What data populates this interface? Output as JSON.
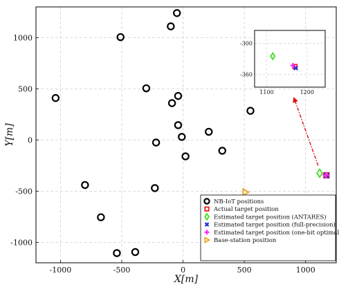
{
  "chart_data": {
    "type": "scatter",
    "xlabel": "X[m]",
    "ylabel": "Y[m]",
    "xlim": [
      -1200,
      1250
    ],
    "ylim": [
      -1200,
      1300
    ],
    "xticks": [
      -1000,
      -500,
      0,
      500,
      1000
    ],
    "yticks": [
      -1000,
      -500,
      0,
      500,
      1000
    ],
    "grid": true,
    "legend_position": "bottom-right",
    "series": [
      {
        "name": "NB-IoT positions",
        "marker": "circle",
        "color": "#000000",
        "points": [
          [
            -50,
            1240
          ],
          [
            -100,
            1110
          ],
          [
            -510,
            1005
          ],
          [
            -300,
            505
          ],
          [
            -40,
            430
          ],
          [
            -1040,
            410
          ],
          [
            -90,
            360
          ],
          [
            550,
            285
          ],
          [
            -40,
            145
          ],
          [
            210,
            80
          ],
          [
            -10,
            30
          ],
          [
            -220,
            -25
          ],
          [
            320,
            -105
          ],
          [
            20,
            -160
          ],
          [
            -800,
            -440
          ],
          [
            -230,
            -470
          ],
          [
            -670,
            -755
          ],
          [
            -390,
            -1095
          ],
          [
            -540,
            -1105
          ]
        ]
      },
      {
        "name": "Actual target position",
        "marker": "square",
        "color": "#ee1c1c",
        "points": [
          [
            1170,
            -345
          ]
        ]
      },
      {
        "name": "Estimated target position (ANTARES)",
        "marker": "diamond",
        "color": "#39e01e",
        "points": [
          [
            1115,
            -325
          ]
        ]
      },
      {
        "name": "Estimated target position (full-precision)",
        "marker": "x",
        "color": "#2a2ad0",
        "points": [
          [
            1172,
            -348
          ]
        ]
      },
      {
        "name": "Estimated target position (one-bit optimal)",
        "marker": "plus",
        "color": "#ff22ff",
        "points": [
          [
            1165,
            -343
          ]
        ]
      },
      {
        "name": "Base-station position",
        "marker": "triangle-right",
        "color": "#e8a21c",
        "points": [
          [
            510,
            -510
          ]
        ]
      }
    ],
    "inset": {
      "xlim": [
        1070,
        1245
      ],
      "ylim": [
        -385,
        -275
      ],
      "xticks": [
        1100,
        1200
      ],
      "yticks": [
        -300,
        -360
      ],
      "points": [
        {
          "series": 1,
          "x": 1170,
          "y": -345
        },
        {
          "series": 2,
          "x": 1115,
          "y": -325
        },
        {
          "series": 3,
          "x": 1172,
          "y": -348
        },
        {
          "series": 4,
          "x": 1165,
          "y": -343
        }
      ]
    },
    "annotation_arrow_color": "#dd1111"
  }
}
